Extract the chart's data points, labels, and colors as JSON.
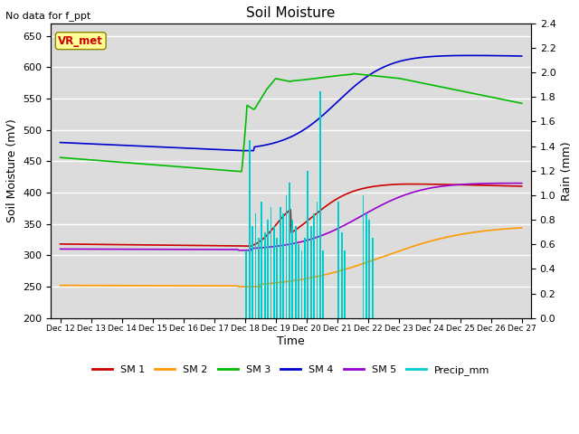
{
  "title": "Soil Moisture",
  "ylabel_left": "Soil Moisture (mV)",
  "ylabel_right": "Rain (mm)",
  "xlabel": "Time",
  "note": "No data for f_ppt",
  "ylim_left": [
    200,
    670
  ],
  "ylim_right": [
    0.0,
    2.4
  ],
  "yticks_left": [
    200,
    250,
    300,
    350,
    400,
    450,
    500,
    550,
    600,
    650
  ],
  "yticks_right": [
    0.0,
    0.2,
    0.4,
    0.6,
    0.8,
    1.0,
    1.2,
    1.4,
    1.6,
    1.8,
    2.0,
    2.2,
    2.4
  ],
  "xtick_labels": [
    "Dec 12",
    "Dec 13",
    "Dec 14",
    "Dec 15",
    "Dec 16",
    "Dec 17",
    "Dec 18",
    "Dec 19",
    "Dec 20",
    "Dec 21",
    "Dec 22",
    "Dec 23",
    "Dec 24",
    "Dec 25",
    "Dec 26",
    "Dec 27"
  ],
  "background_color": "#dcdcdc",
  "vr_met_label": "VR_met",
  "vr_met_color": "#cc0000",
  "vr_met_bg": "#ffff99",
  "legend_entries": [
    "SM 1",
    "SM 2",
    "SM 3",
    "SM 4",
    "SM 5",
    "Precip_mm"
  ],
  "legend_colors": [
    "#cc0000",
    "#ff9900",
    "#00bb00",
    "#0000cc",
    "#9900cc",
    "#00cccc"
  ],
  "sm1_color": "#cc0000",
  "sm2_color": "#ff9900",
  "sm3_color": "#00bb00",
  "sm4_color": "#0000cc",
  "sm5_color": "#9900cc",
  "precip_color": "#00cccc",
  "precip_days": [
    6.05,
    6.15,
    6.25,
    6.35,
    6.45,
    6.55,
    6.65,
    6.75,
    6.85,
    6.95,
    7.05,
    7.15,
    7.25,
    7.35,
    7.45,
    7.55,
    7.65,
    7.75,
    7.85,
    7.95,
    8.05,
    8.15,
    8.25,
    8.35,
    8.45,
    8.55,
    9.05,
    9.15,
    9.25,
    9.85,
    9.95,
    10.05,
    10.15
  ],
  "precip_vals": [
    0.55,
    1.45,
    0.75,
    0.85,
    0.65,
    0.95,
    0.7,
    0.8,
    0.9,
    0.75,
    0.65,
    0.9,
    0.85,
    1.0,
    1.1,
    0.8,
    0.75,
    0.6,
    0.55,
    0.65,
    1.2,
    0.75,
    0.85,
    0.95,
    1.85,
    0.55,
    0.95,
    0.7,
    0.55,
    1.0,
    0.85,
    0.8,
    0.65
  ]
}
